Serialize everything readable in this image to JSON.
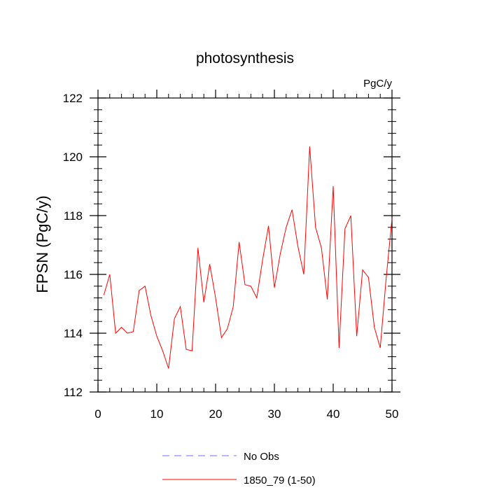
{
  "chart_data": {
    "type": "line",
    "title": "photosynthesis",
    "units": "PgC/y",
    "xlabel": "",
    "ylabel": "FPSN  (PgC/y)",
    "xlim": [
      0,
      50
    ],
    "ylim": [
      112,
      122
    ],
    "xticks": [
      0,
      10,
      20,
      30,
      40,
      50
    ],
    "yticks": [
      112,
      114,
      116,
      118,
      120,
      122
    ],
    "x_minor_step": 2,
    "y_minor_step": 0.4,
    "series": [
      {
        "name": "1850_79 (1-50)",
        "color": "#ff0000",
        "dash": "solid",
        "x": [
          1,
          2,
          3,
          4,
          5,
          6,
          7,
          8,
          9,
          10,
          11,
          12,
          13,
          14,
          15,
          16,
          17,
          18,
          19,
          20,
          21,
          22,
          23,
          24,
          25,
          26,
          27,
          28,
          29,
          30,
          31,
          32,
          33,
          34,
          35,
          36,
          37,
          38,
          39,
          40,
          41,
          42,
          43,
          44,
          45,
          46,
          47,
          48,
          49,
          50
        ],
        "values": [
          115.3,
          116.0,
          114.0,
          114.2,
          114.0,
          114.05,
          115.45,
          115.6,
          114.6,
          113.9,
          113.4,
          112.8,
          114.5,
          114.9,
          113.45,
          113.4,
          116.9,
          115.05,
          116.35,
          115.2,
          113.85,
          114.15,
          114.9,
          117.1,
          115.65,
          115.6,
          115.2,
          116.5,
          117.65,
          115.55,
          116.7,
          117.6,
          118.2,
          116.95,
          116.0,
          120.35,
          117.6,
          116.9,
          115.15,
          119.0,
          113.5,
          117.55,
          118.0,
          113.9,
          116.15,
          115.9,
          114.2,
          113.5,
          115.85,
          117.9
        ]
      }
    ],
    "legend": [
      {
        "label": "No Obs",
        "color": "#6f6fff",
        "dash": "dashed"
      },
      {
        "label": "1850_79 (1-50)",
        "color": "#ff0000",
        "dash": "solid"
      }
    ]
  }
}
